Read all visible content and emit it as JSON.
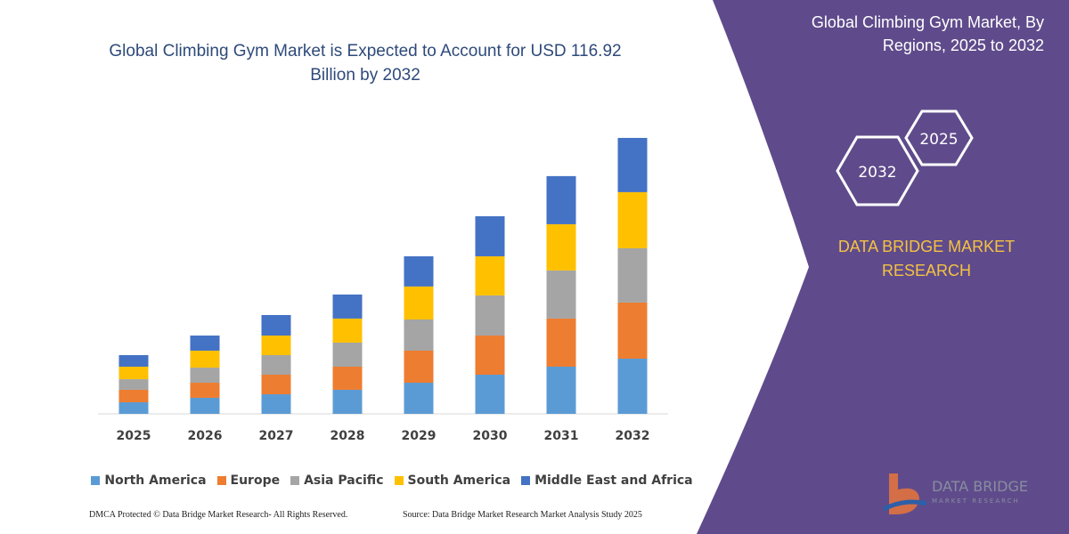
{
  "chart_data": {
    "type": "stacked-bar",
    "title": "Global Climbing Gym Market is Expected to Account for USD 116.92 Billion by 2032",
    "categories": [
      "2025",
      "2026",
      "2027",
      "2028",
      "2029",
      "2030",
      "2031",
      "2032"
    ],
    "series": [
      {
        "name": "North America",
        "color": "#5b9bd5",
        "values": [
          4.9,
          6.8,
          8.3,
          10.2,
          13.2,
          16.6,
          20.0,
          23.4
        ]
      },
      {
        "name": "Europe",
        "color": "#ed7d31",
        "values": [
          5.3,
          6.4,
          8.3,
          9.8,
          13.6,
          16.6,
          20.4,
          23.8
        ]
      },
      {
        "name": "Asia Pacific",
        "color": "#a5a5a5",
        "values": [
          4.5,
          6.4,
          8.3,
          10.2,
          13.2,
          17.0,
          20.4,
          23.0
        ]
      },
      {
        "name": "South America",
        "color": "#ffc000",
        "values": [
          5.3,
          7.2,
          8.3,
          10.2,
          14.0,
          16.6,
          19.6,
          23.8
        ]
      },
      {
        "name": "Middle East and Africa",
        "color": "#4472c4",
        "values": [
          4.9,
          6.4,
          8.7,
          10.2,
          12.8,
          17.0,
          20.4,
          23.0
        ]
      }
    ],
    "ylim": [
      0,
      120
    ]
  },
  "panel": {
    "title": "Global Climbing Gym Market, By Regions, 2025 to 2032",
    "hex_front": "2032",
    "hex_back": "2025",
    "brand": "DATA BRIDGE MARKET RESEARCH"
  },
  "footer": {
    "left": "DMCA Protected © Data Bridge Market Research-  All Rights Reserved.",
    "right": "Source: Data Bridge Market Research  Market Analysis Study 2025"
  },
  "logo": {
    "name": "DATA BRIDGE",
    "tagline": "MARKET RESEARCH"
  }
}
